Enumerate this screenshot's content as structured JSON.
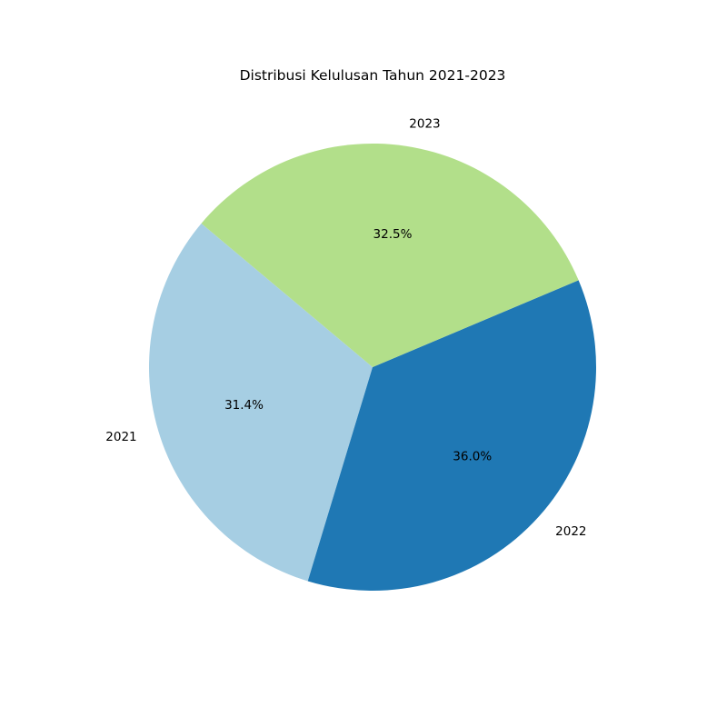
{
  "chart_data": {
    "type": "pie",
    "title": "Distribusi Kelulusan Tahun 2021-2023",
    "categories": [
      "2021",
      "2022",
      "2023"
    ],
    "values": [
      31.4,
      36.0,
      32.5
    ],
    "value_labels": [
      "31.4%",
      "36.0%",
      "32.5%"
    ],
    "colors": [
      "#a6cee3",
      "#1f78b4",
      "#b2df8a"
    ],
    "legend": "none"
  }
}
